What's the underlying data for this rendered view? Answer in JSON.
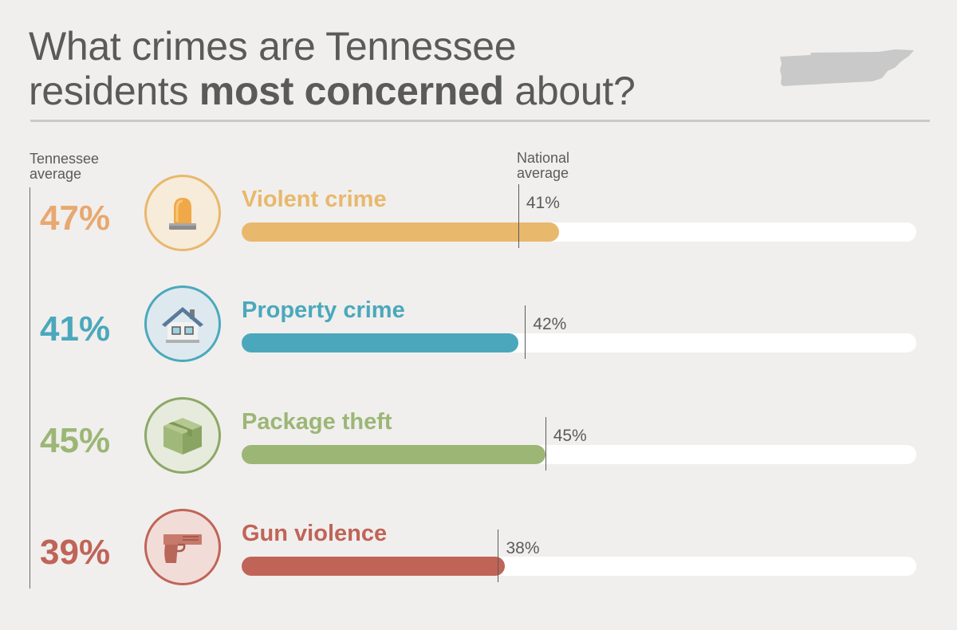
{
  "title": {
    "part1": "What crimes are Tennessee",
    "part2": "residents ",
    "bold": "most concerned",
    "part3": " about?"
  },
  "labels": {
    "tn_line1": "Tennessee",
    "tn_line2": "average",
    "nat_line1": "National",
    "nat_line2": "average"
  },
  "colors": {
    "violent": "#e8b86d",
    "property": "#4ba8bc",
    "package": "#9cb676",
    "gun": "#c06458"
  },
  "chart_data": {
    "type": "bar",
    "categories": [
      "Violent crime",
      "Property crime",
      "Package theft",
      "Gun violence"
    ],
    "series": [
      {
        "name": "Tennessee average",
        "values": [
          47,
          41,
          45,
          39
        ]
      },
      {
        "name": "National average",
        "values": [
          41,
          42,
          45,
          38
        ]
      }
    ],
    "icons": [
      "siren-icon",
      "house-icon",
      "package-icon",
      "handgun-icon"
    ],
    "xlim": [
      0,
      100
    ],
    "title": "What crimes are Tennessee residents most concerned about?",
    "xlabel": "",
    "ylabel": ""
  },
  "rows": [
    {
      "pct": "47%",
      "label": "Violent crime",
      "nat": "41%"
    },
    {
      "pct": "41%",
      "label": "Property crime",
      "nat": "42%"
    },
    {
      "pct": "45%",
      "label": "Package theft",
      "nat": "45%"
    },
    {
      "pct": "39%",
      "label": "Gun violence",
      "nat": "38%"
    }
  ]
}
